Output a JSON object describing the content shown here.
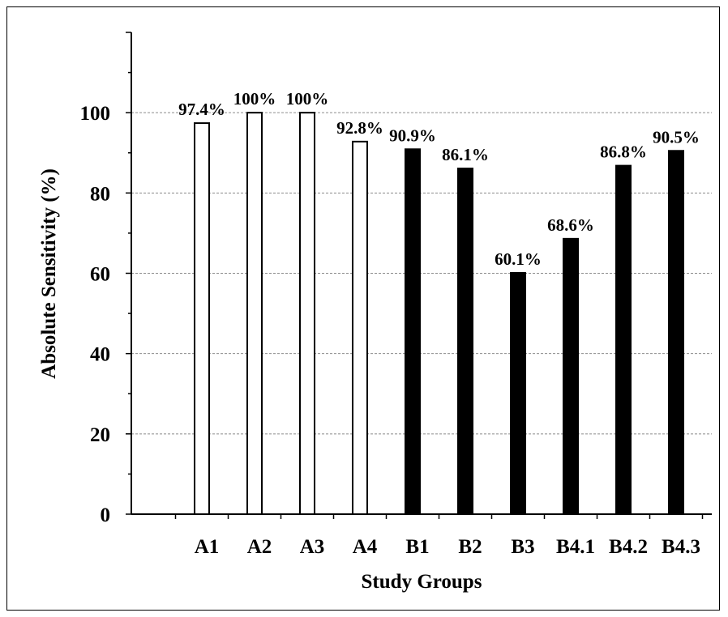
{
  "chart_data": {
    "type": "bar",
    "categories": [
      "A1",
      "A2",
      "A3",
      "A4",
      "B1",
      "B2",
      "B3",
      "B4.1",
      "B4.2",
      "B4.3"
    ],
    "values": [
      97.4,
      100,
      100,
      92.8,
      90.9,
      86.1,
      60.1,
      68.6,
      86.8,
      90.5
    ],
    "data_labels": [
      "97.4%",
      "100%",
      "100%",
      "92.8%",
      "90.9%",
      "86.1%",
      "60.1%",
      "68.6%",
      "86.8%",
      "90.5%"
    ],
    "bar_fill": [
      "white",
      "white",
      "white",
      "white",
      "black",
      "black",
      "black",
      "black",
      "black",
      "black"
    ],
    "xlabel": "Study Groups",
    "ylabel": "Absolute Sensitivity (%)",
    "ylim": [
      0,
      120
    ],
    "yticks": [
      0,
      20,
      40,
      60,
      80,
      100
    ],
    "grid": "horizontal dashed",
    "legend": "none",
    "colors": {
      "white": "#ffffff",
      "black": "#000000",
      "grid": "#8c8c8c"
    }
  }
}
